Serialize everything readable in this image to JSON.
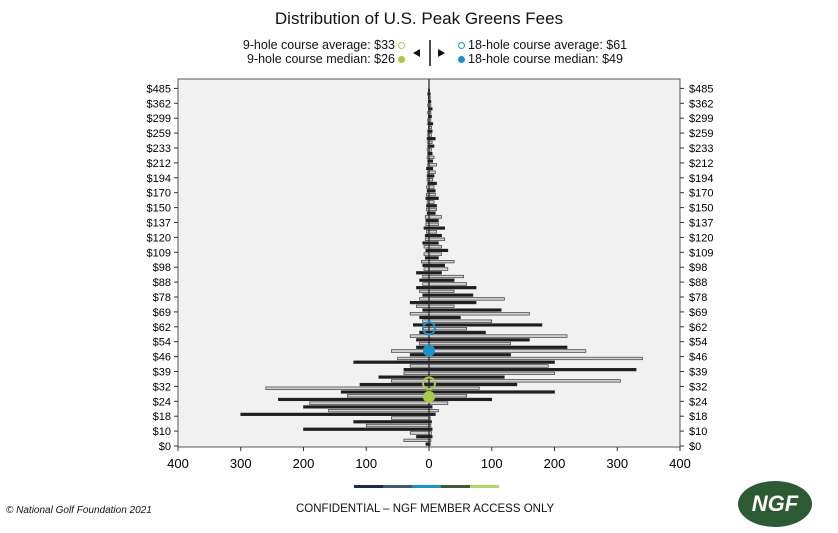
{
  "chart_data": {
    "type": "bar",
    "orientation": "horizontal back-to-back histogram",
    "title": "Distribution of U.S. Peak Greens Fees",
    "ytick_labels": [
      "$0",
      "$10",
      "$18",
      "$24",
      "$32",
      "$39",
      "$46",
      "$54",
      "$62",
      "$69",
      "$78",
      "$88",
      "$98",
      "$109",
      "$120",
      "$137",
      "$150",
      "$170",
      "$194",
      "$212",
      "$233",
      "$259",
      "$299",
      "$362",
      "$485"
    ],
    "xtick_labels": [
      "400",
      "300",
      "200",
      "100",
      "0",
      "100",
      "200",
      "300",
      "400"
    ],
    "xlim": [
      -400,
      400
    ],
    "row_step_in_tick_units": 0.25,
    "series": [
      {
        "name": "9-hole courses",
        "side": "left",
        "values": [
          5,
          40,
          20,
          30,
          200,
          100,
          120,
          60,
          300,
          160,
          200,
          190,
          240,
          130,
          140,
          260,
          110,
          60,
          80,
          40,
          40,
          30,
          120,
          50,
          30,
          60,
          20,
          15,
          20,
          30,
          15,
          10,
          25,
          10,
          15,
          30,
          10,
          20,
          30,
          15,
          10,
          15,
          20,
          10,
          15,
          10,
          20,
          8,
          10,
          12,
          6,
          8,
          5,
          8,
          10,
          6,
          6,
          4,
          8,
          5,
          5,
          6,
          3,
          4,
          4,
          3,
          5,
          4,
          3,
          4,
          2,
          3,
          3,
          2,
          4,
          2,
          2,
          3,
          2,
          3,
          2,
          2,
          3,
          2,
          2,
          1,
          2,
          2,
          1,
          2,
          1,
          2,
          1,
          1,
          2,
          1
        ]
      },
      {
        "name": "18-hole courses",
        "side": "right",
        "values": [
          2,
          3,
          5,
          4,
          5,
          3,
          4,
          2,
          10,
          15,
          5,
          30,
          100,
          60,
          200,
          80,
          140,
          305,
          120,
          200,
          330,
          190,
          200,
          340,
          130,
          250,
          220,
          130,
          160,
          220,
          90,
          60,
          180,
          100,
          50,
          160,
          115,
          40,
          75,
          120,
          70,
          40,
          75,
          60,
          40,
          55,
          20,
          30,
          25,
          40,
          15,
          20,
          30,
          20,
          15,
          25,
          20,
          12,
          25,
          15,
          15,
          20,
          10,
          12,
          12,
          8,
          15,
          10,
          10,
          8,
          12,
          6,
          8,
          10,
          6,
          12,
          6,
          8,
          5,
          4,
          8,
          5,
          10,
          4,
          5,
          4,
          6,
          3,
          4,
          3,
          5,
          3,
          3,
          2,
          2,
          1
        ]
      }
    ],
    "markers": [
      {
        "label": "9-hole course average: $33",
        "value": 33,
        "tick_position": 4.2,
        "color": "#a8c94a",
        "filled": false
      },
      {
        "label": "9-hole course median: $26",
        "value": 26,
        "tick_position": 3.3,
        "color": "#a8c94a",
        "filled": true
      },
      {
        "label": "18-hole course average: $61",
        "value": 61,
        "tick_position": 7.9,
        "color": "#1a93c9",
        "filled": false
      },
      {
        "label": "18-hole course median: $49",
        "value": 49,
        "tick_position": 6.4,
        "color": "#1a93c9",
        "filled": true
      }
    ],
    "legend_placement": "top-center",
    "grid": false
  },
  "footer": {
    "copyright": "© National Golf Foundation 2021",
    "confidential": "CONFIDENTIAL – NGF MEMBER ACCESS ONLY",
    "logo": "NGF",
    "stripe_colors": [
      "#1f2a44",
      "#3b5a7a",
      "#1a93c9",
      "#3d5a3a",
      "#b5d46a"
    ]
  }
}
